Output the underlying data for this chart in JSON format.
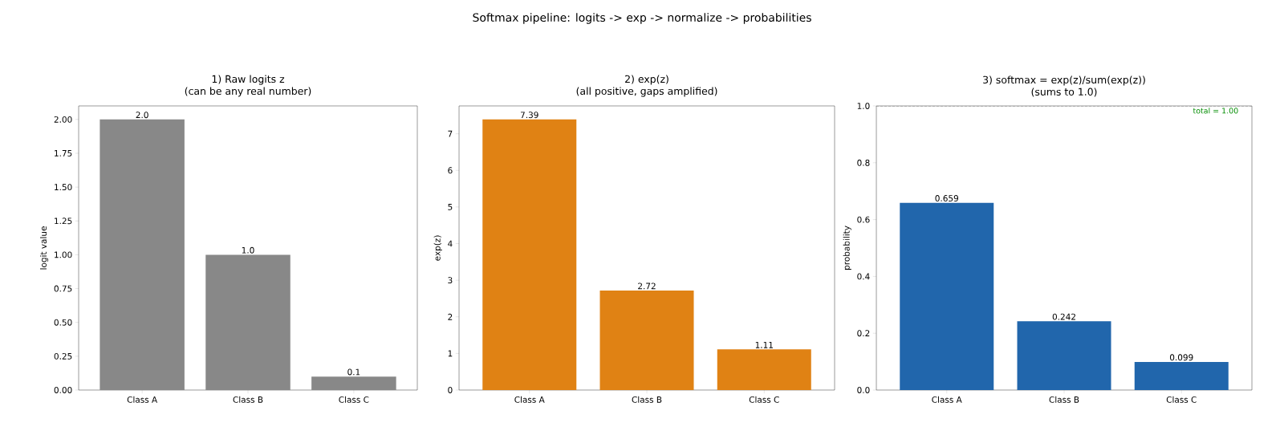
{
  "chart_data": [
    {
      "type": "other",
      "title": "Softmax pipeline: logits -> exp -> normalize -> probabilities"
    },
    {
      "type": "bar",
      "title": "1) Raw logits z\n(can be any real number)",
      "ylabel": "logit value",
      "categories": [
        "Class A",
        "Class B",
        "Class C"
      ],
      "values": [
        2.0,
        1.0,
        0.1
      ],
      "value_labels": [
        "2.0",
        "1.0",
        "0.1"
      ],
      "color": "#888888",
      "ylim": [
        0,
        2.1
      ],
      "yticks": [
        {
          "value": 0,
          "label": "0.00"
        },
        {
          "value": 0.25,
          "label": "0.25"
        },
        {
          "value": 0.5,
          "label": "0.50"
        },
        {
          "value": 0.75,
          "label": "0.75"
        },
        {
          "value": 1.0,
          "label": "1.00"
        },
        {
          "value": 1.25,
          "label": "1.25"
        },
        {
          "value": 1.5,
          "label": "1.50"
        },
        {
          "value": 1.75,
          "label": "1.75"
        },
        {
          "value": 2.0,
          "label": "2.00"
        }
      ]
    },
    {
      "type": "bar",
      "title": "2) exp(z)\n(all positive, gaps amplified)",
      "ylabel": "exp(z)",
      "categories": [
        "Class A",
        "Class B",
        "Class C"
      ],
      "values": [
        7.39,
        2.72,
        1.11
      ],
      "value_labels": [
        "7.39",
        "2.72",
        "1.11"
      ],
      "color": "#e08214",
      "ylim": [
        0,
        7.76
      ],
      "yticks": [
        0,
        1,
        2,
        3,
        4,
        5,
        6,
        7
      ]
    },
    {
      "type": "bar",
      "title": "3) softmax = exp(z)/sum(exp(z))\n(sums to 1.0)",
      "ylabel": "probability",
      "categories": [
        "Class A",
        "Class B",
        "Class C"
      ],
      "values": [
        0.659,
        0.242,
        0.099
      ],
      "value_labels": [
        "0.659",
        "0.242",
        "0.099"
      ],
      "color": "#2166ac",
      "ylim": [
        0,
        1
      ],
      "yticks": [
        {
          "value": 0,
          "label": "0.0"
        },
        {
          "value": 0.2,
          "label": "0.2"
        },
        {
          "value": 0.4,
          "label": "0.4"
        },
        {
          "value": 0.6,
          "label": "0.6"
        },
        {
          "value": 0.8,
          "label": "0.8"
        },
        {
          "value": 1.0,
          "label": "1.0"
        }
      ],
      "ref_lines": [
        {
          "axis": "y",
          "value": 1.0,
          "label": "total = 1.00",
          "color": "#808080",
          "line_style": "dashed"
        }
      ]
    }
  ]
}
